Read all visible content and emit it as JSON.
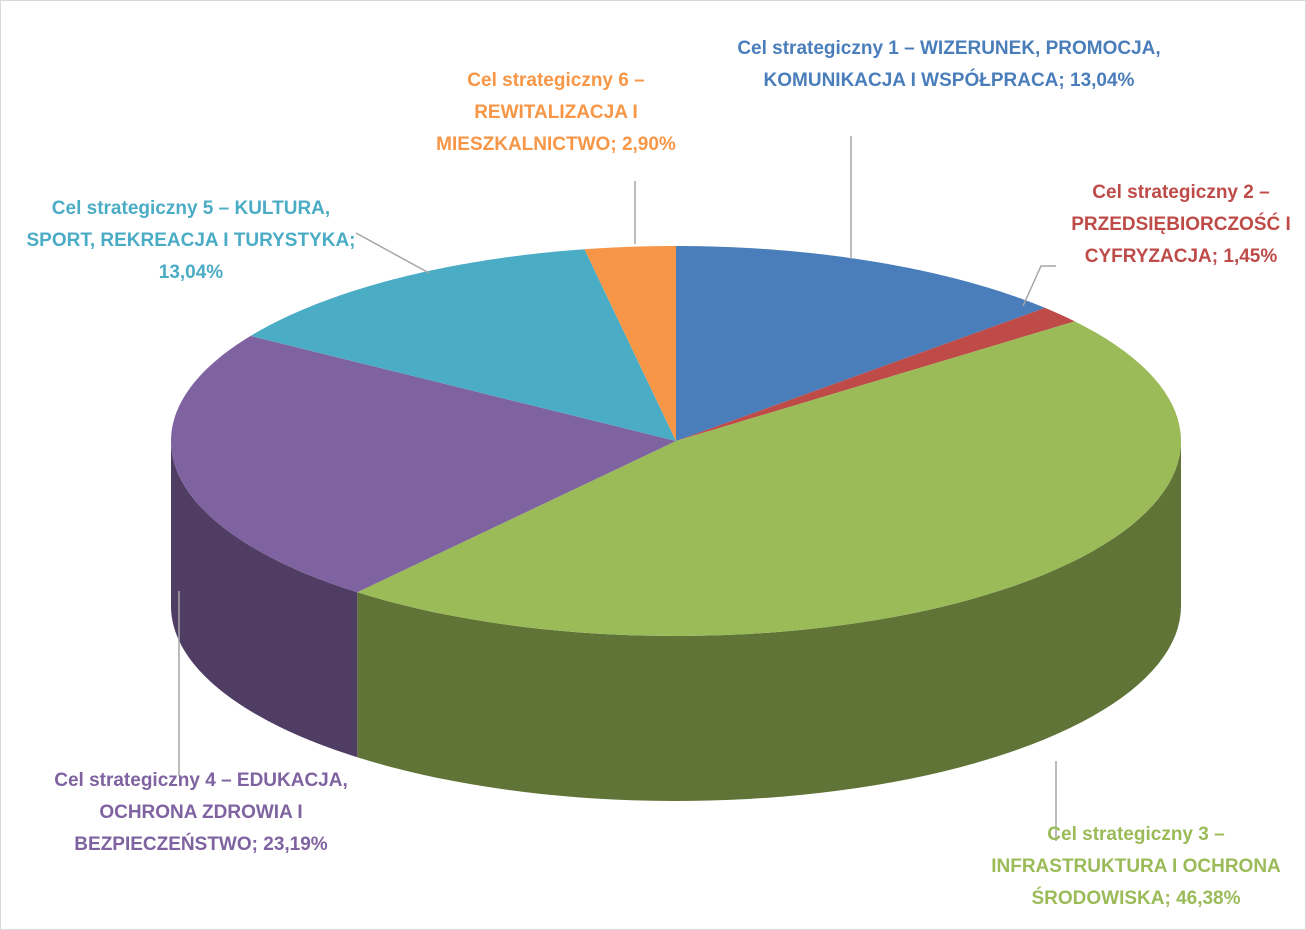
{
  "chart_data": {
    "type": "pie",
    "categories": [
      "Cel strategiczny 1 – WIZERUNEK, PROMOCJA, KOMUNIKACJA I WSPÓŁPRACA;",
      "Cel strategiczny 2 – PRZEDSIĘBIORCZOŚĆ I CYFRYZACJA;",
      "Cel strategiczny 3 – INFRASTRUKTURA I OCHRONA ŚRODOWISKA;",
      "Cel strategiczny 4 – EDUKACJA, OCHRONA ZDROWIA I BEZPIECZEŃSTWO;",
      "Cel strategiczny 5 – KULTURA, SPORT, REKREACJA I TURYSTYKA;",
      "Cel strategiczny 6 – REWITALIZACJA I MIESZKALNICTWO;"
    ],
    "values": [
      13.04,
      1.45,
      46.38,
      23.19,
      13.04,
      2.9
    ],
    "value_labels": [
      "13,04%",
      "1,45%",
      "46,38%",
      "23,19%",
      "13,04%",
      "2,90%"
    ],
    "colors": [
      "#4a7ebb",
      "#be4b48",
      "#9bbb59",
      "#7f63a1",
      "#4bacc6",
      "#f79646"
    ]
  }
}
